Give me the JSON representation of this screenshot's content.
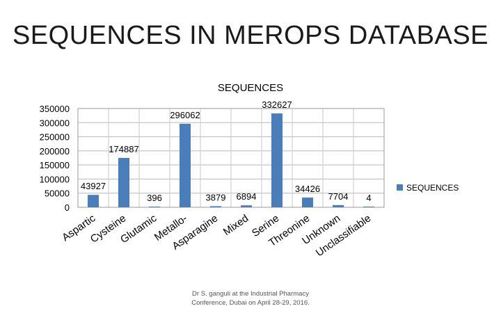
{
  "slide": {
    "title": "SEQUENCES IN MEROPS DATABASE",
    "footer_line1": "Dr S. ganguli at the Industrial Pharmacy",
    "footer_line2": "Conference, Dubai on April 28-29, 2016."
  },
  "chart_data": {
    "type": "bar",
    "title": "SEQUENCES",
    "xlabel": "",
    "ylabel": "",
    "ylim": [
      0,
      350000
    ],
    "y_ticks": [
      "350000",
      "300000",
      "250000",
      "200000",
      "150000",
      "100000",
      "50000",
      "0"
    ],
    "grid": true,
    "legend_position": "right",
    "categories": [
      "Aspartic",
      "Cysteine",
      "Glutamic",
      "Metallo-",
      "Asparagine",
      "Mixed",
      "Serine",
      "Threonine",
      "Unknown",
      "Unclassifiable"
    ],
    "series": [
      {
        "name": "SEQUENCES",
        "color": "#4a7ebb",
        "values": [
          43927,
          174887,
          396,
          296062,
          3879,
          6894,
          332627,
          34426,
          7704,
          4
        ],
        "labels": [
          "43927",
          "174887",
          "396",
          "296062",
          "3879",
          "6894",
          "332627",
          "34426",
          "7704",
          "4"
        ]
      }
    ]
  }
}
